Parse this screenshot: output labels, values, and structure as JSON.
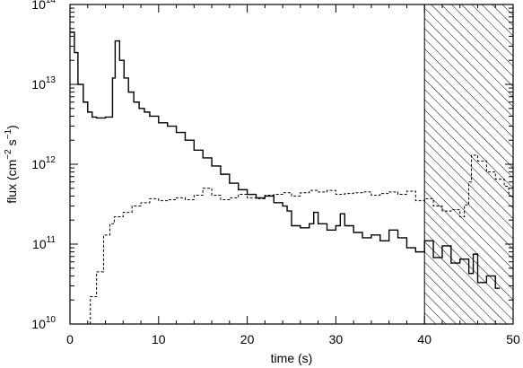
{
  "chart_data": {
    "type": "line",
    "title": "",
    "xlabel": "time (s)",
    "ylabel_parts": {
      "base": "flux (cm",
      "exp1": "−2",
      "mid": " s",
      "exp2": "−1",
      "end": ")"
    },
    "xlim": [
      0,
      50
    ],
    "ylim": [
      10000000000.0,
      100000000000000.0
    ],
    "yscale": "log",
    "grid": false,
    "legend": "none",
    "x_ticks": [
      0,
      10,
      20,
      30,
      40,
      50
    ],
    "y_ticks": [
      {
        "base": "10",
        "exp": "10",
        "value": 10000000000.0
      },
      {
        "base": "10",
        "exp": "11",
        "value": 100000000000.0
      },
      {
        "base": "10",
        "exp": "12",
        "value": 1000000000000.0
      },
      {
        "base": "10",
        "exp": "13",
        "value": 10000000000000.0
      },
      {
        "base": "10",
        "exp": "14",
        "value": 100000000000000.0
      }
    ],
    "shaded_region": {
      "x": [
        40,
        50
      ],
      "pattern": "diagonal-hatch"
    },
    "series": [
      {
        "style": "solid",
        "step": "post",
        "points": [
          [
            0,
            45000000000000.0
          ],
          [
            0.5,
            25000000000000.0
          ],
          [
            0.9,
            10000000000000.0
          ],
          [
            1.5,
            6000000000000.0
          ],
          [
            2.0,
            4500000000000.0
          ],
          [
            2.5,
            3900000000000.0
          ],
          [
            3.0,
            3800000000000.0
          ],
          [
            4.0,
            3900000000000.0
          ],
          [
            4.8,
            12000000000000.0
          ],
          [
            5.1,
            35000000000000.0
          ],
          [
            5.6,
            20000000000000.0
          ],
          [
            6.1,
            12000000000000.0
          ],
          [
            6.6,
            8000000000000.0
          ],
          [
            7.2,
            6000000000000.0
          ],
          [
            7.8,
            5000000000000.0
          ],
          [
            8.4,
            4500000000000.0
          ],
          [
            9.0,
            4000000000000.0
          ],
          [
            10.0,
            3300000000000.0
          ],
          [
            11.0,
            3000000000000.0
          ],
          [
            12.0,
            2500000000000.0
          ],
          [
            13.0,
            2000000000000.0
          ],
          [
            14.0,
            1500000000000.0
          ],
          [
            15.0,
            1200000000000.0
          ],
          [
            16.0,
            950000000000.0
          ],
          [
            17.0,
            750000000000.0
          ],
          [
            18.0,
            580000000000.0
          ],
          [
            19.0,
            480000000000.0
          ],
          [
            20.0,
            420000000000.0
          ],
          [
            21.0,
            380000000000.0
          ],
          [
            22.0,
            400000000000.0
          ],
          [
            23.0,
            330000000000.0
          ],
          [
            24.0,
            300000000000.0
          ],
          [
            24.5,
            260000000000.0
          ],
          [
            25.0,
            170000000000.0
          ],
          [
            26.0,
            160000000000.0
          ],
          [
            27.0,
            180000000000.0
          ],
          [
            27.5,
            250000000000.0
          ],
          [
            28.0,
            180000000000.0
          ],
          [
            29.0,
            150000000000.0
          ],
          [
            30.0,
            170000000000.0
          ],
          [
            30.5,
            240000000000.0
          ],
          [
            31.0,
            170000000000.0
          ],
          [
            32.0,
            140000000000.0
          ],
          [
            33.0,
            120000000000.0
          ],
          [
            34.0,
            130000000000.0
          ],
          [
            35.0,
            110000000000.0
          ],
          [
            36.0,
            150000000000.0
          ],
          [
            37.0,
            120000000000.0
          ],
          [
            38.0,
            90000000000.0
          ],
          [
            39.0,
            80000000000.0
          ],
          [
            40.0,
            110000000000.0
          ],
          [
            41.0,
            68000000000.0
          ],
          [
            42.0,
            95000000000.0
          ],
          [
            43.0,
            58000000000.0
          ],
          [
            44.0,
            65000000000.0
          ],
          [
            45.0,
            43000000000.0
          ],
          [
            45.5,
            75000000000.0
          ],
          [
            46.0,
            33000000000.0
          ],
          [
            47.0,
            40000000000.0
          ],
          [
            48.0,
            28000000000.0
          ],
          [
            48.5,
            28000000000.0
          ]
        ]
      },
      {
        "style": "dashed",
        "step": "post",
        "points": [
          [
            1.8,
            10000000000.0
          ],
          [
            2.3,
            22000000000.0
          ],
          [
            3.0,
            45000000000.0
          ],
          [
            3.8,
            130000000000.0
          ],
          [
            4.5,
            180000000000.0
          ],
          [
            5.0,
            220000000000.0
          ],
          [
            6.0,
            250000000000.0
          ],
          [
            7.0,
            300000000000.0
          ],
          [
            8.0,
            330000000000.0
          ],
          [
            9.0,
            370000000000.0
          ],
          [
            10.0,
            350000000000.0
          ],
          [
            11.0,
            360000000000.0
          ],
          [
            12.0,
            380000000000.0
          ],
          [
            13.0,
            360000000000.0
          ],
          [
            14.0,
            410000000000.0
          ],
          [
            15.0,
            500000000000.0
          ],
          [
            16.0,
            410000000000.0
          ],
          [
            17.0,
            360000000000.0
          ],
          [
            18.0,
            380000000000.0
          ],
          [
            19.0,
            420000000000.0
          ],
          [
            20.0,
            380000000000.0
          ],
          [
            21.0,
            370000000000.0
          ],
          [
            22.0,
            410000000000.0
          ],
          [
            23.0,
            420000000000.0
          ],
          [
            24.0,
            440000000000.0
          ],
          [
            25.0,
            400000000000.0
          ],
          [
            26.0,
            440000000000.0
          ],
          [
            27.0,
            470000000000.0
          ],
          [
            28.0,
            450000000000.0
          ],
          [
            29.0,
            470000000000.0
          ],
          [
            30.0,
            420000000000.0
          ],
          [
            31.0,
            430000000000.0
          ],
          [
            32.0,
            440000000000.0
          ],
          [
            33.0,
            450000000000.0
          ],
          [
            34.0,
            410000000000.0
          ],
          [
            35.0,
            430000000000.0
          ],
          [
            36.0,
            450000000000.0
          ],
          [
            37.0,
            420000000000.0
          ],
          [
            38.0,
            460000000000.0
          ],
          [
            39.0,
            350000000000.0
          ],
          [
            40.0,
            370000000000.0
          ],
          [
            41.0,
            300000000000.0
          ],
          [
            42.0,
            260000000000.0
          ],
          [
            43.0,
            270000000000.0
          ],
          [
            44.0,
            220000000000.0
          ],
          [
            44.5,
            310000000000.0
          ],
          [
            45.0,
            600000000000.0
          ],
          [
            45.3,
            1300000000000.0
          ],
          [
            46.0,
            1100000000000.0
          ],
          [
            47.0,
            800000000000.0
          ],
          [
            48.0,
            650000000000.0
          ],
          [
            49.0,
            530000000000.0
          ],
          [
            49.5,
            400000000000.0
          ],
          [
            50.0,
            400000000000.0
          ]
        ]
      }
    ]
  }
}
